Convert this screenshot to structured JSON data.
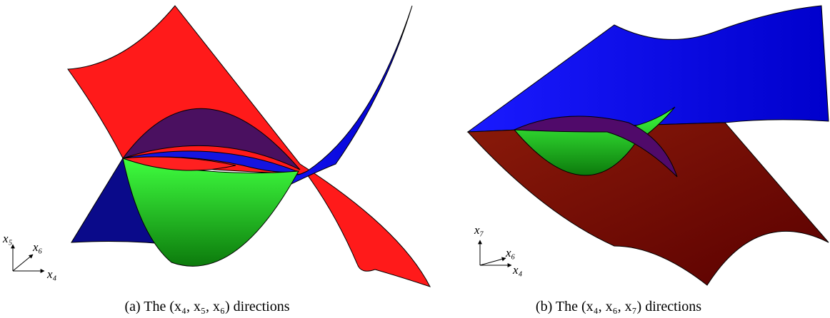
{
  "panels": [
    {
      "caption": "(a) The (x₄, x₅, x₆) directions",
      "axes": {
        "up": "x₅",
        "diag": "x₆",
        "right": "x₄"
      }
    },
    {
      "caption": "(b) The (x₄, x₆, x₇) directions",
      "axes": {
        "up": "x₇",
        "diag": "x₆",
        "right": "x₄"
      }
    }
  ]
}
